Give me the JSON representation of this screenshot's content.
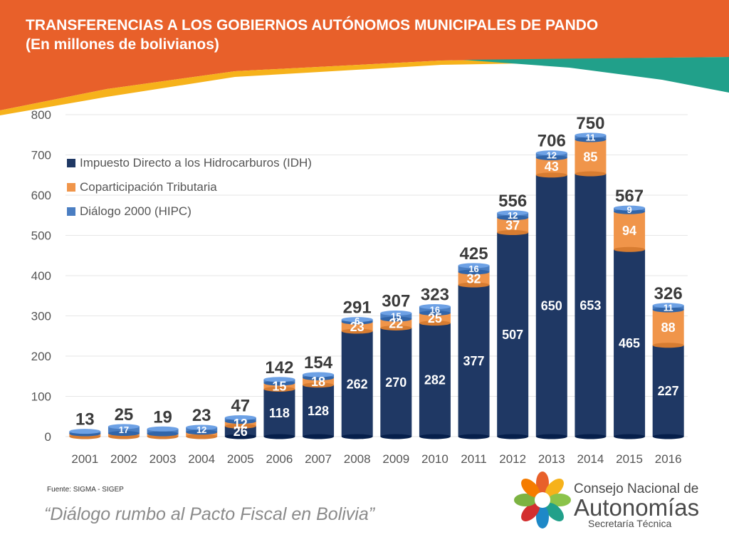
{
  "header": {
    "title": "TRANSFERENCIAS A LOS GOBIERNOS AUTÓNOMOS MUNICIPALES DE PANDO",
    "subtitle": "(En millones de bolivianos)"
  },
  "colors": {
    "banner_orange": "#E8602A",
    "banner_yellow": "#F6B21B",
    "banner_teal": "#21A08A",
    "idh": "#1F3864",
    "coparticipacion": "#F0954A",
    "hipc": "#4A7EC2"
  },
  "chart_data": {
    "type": "bar",
    "stacked": true,
    "categories": [
      "2001",
      "2002",
      "2003",
      "2004",
      "2005",
      "2006",
      "2007",
      "2008",
      "2009",
      "2010",
      "2011",
      "2012",
      "2013",
      "2014",
      "2015",
      "2016"
    ],
    "ylim": [
      0,
      800
    ],
    "yticks": [
      0,
      100,
      200,
      300,
      400,
      500,
      600,
      700,
      800
    ],
    "grid": true,
    "legend_position": "top-left",
    "series": [
      {
        "name": "Impuesto Directo a los Hidrocarburos (IDH)",
        "color": "#1F3864",
        "values": [
          0,
          0,
          0,
          0,
          26,
          118,
          128,
          262,
          270,
          282,
          377,
          507,
          650,
          653,
          465,
          227
        ],
        "labels": [
          "",
          "",
          "",
          "",
          "26",
          "118",
          "128",
          "262",
          "270",
          "282",
          "377",
          "507",
          "650",
          "653",
          "465",
          "227"
        ]
      },
      {
        "name": "Coparticipación Tributaria",
        "color": "#F0954A",
        "values": [
          7,
          8,
          7,
          11,
          12,
          15,
          18,
          23,
          22,
          25,
          32,
          37,
          43,
          85,
          94,
          88
        ],
        "labels": [
          "",
          "",
          "",
          "",
          "12",
          "15",
          "18",
          "23",
          "22",
          "25",
          "32",
          "37",
          "43",
          "85",
          "94",
          "88"
        ]
      },
      {
        "name": "Diálogo 2000 (HIPC)",
        "color": "#4A7EC2",
        "values": [
          6,
          17,
          12,
          12,
          9,
          9,
          8,
          6,
          15,
          16,
          16,
          12,
          12,
          11,
          9,
          11
        ],
        "labels": [
          "",
          "17",
          "",
          "12",
          "",
          "",
          "",
          "6",
          "15",
          "16",
          "16",
          "12",
          "12",
          "11",
          "9",
          "11"
        ]
      }
    ],
    "totals": [
      13,
      25,
      19,
      23,
      47,
      142,
      154,
      291,
      307,
      323,
      425,
      556,
      706,
      750,
      567,
      326
    ]
  },
  "footer": {
    "source": "Fuente: SIGMA - SIGEP",
    "slogan": "“Diálogo rumbo al Pacto Fiscal en Bolivia”"
  },
  "logo": {
    "icon": "hands-circle-logo-icon",
    "line1": "Consejo Nacional de",
    "line2": "Autonomías",
    "line3": "Secretaría Técnica"
  }
}
